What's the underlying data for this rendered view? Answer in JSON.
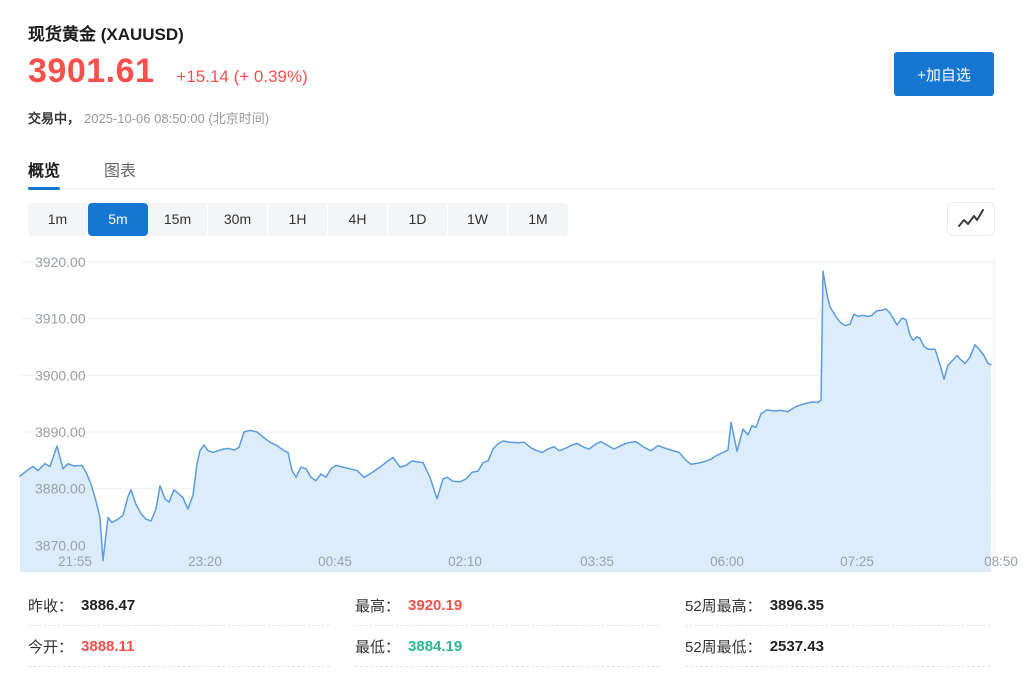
{
  "header": {
    "title": "现货黄金 (XAUUSD)",
    "price": "3901.61",
    "change": "+15.14 (+ 0.39%)",
    "status_label": "交易中，",
    "timestamp": "2025-10-06 08:50:00",
    "timezone_note": "(北京时间)",
    "add_watchlist_label": "+加自选"
  },
  "tabs": [
    {
      "label": "概览",
      "active": true
    },
    {
      "label": "图表",
      "active": false
    }
  ],
  "timeframes": {
    "options": [
      "1m",
      "5m",
      "15m",
      "30m",
      "1H",
      "4H",
      "1D",
      "1W",
      "1M"
    ],
    "active": "5m"
  },
  "stats": {
    "columns": [
      [
        {
          "name": "prev-close",
          "label": "昨收：",
          "value": "3886.47",
          "color_key": "dark"
        },
        {
          "name": "open",
          "label": "今开：",
          "value": "3888.11",
          "color_key": "up"
        }
      ],
      [
        {
          "name": "high",
          "label": "最高：",
          "value": "3920.19",
          "color_key": "up"
        },
        {
          "name": "low",
          "label": "最低：",
          "value": "3884.19",
          "color_key": "down"
        }
      ],
      [
        {
          "name": "52w-high",
          "label": "52周最高：",
          "value": "3896.35",
          "color_key": "dark"
        },
        {
          "name": "52w-low",
          "label": "52周最低：",
          "value": "2537.43",
          "color_key": "dark"
        }
      ]
    ]
  },
  "colors": {
    "up": "#f9504b",
    "down": "#2ab98f",
    "accent": "#1677d3",
    "dark": "#222222",
    "chart_line": "#5b9ce0",
    "chart_fill": "#dcecfa",
    "grid": "#efefef",
    "axis_text": "#9aa0a6"
  },
  "chart_data": {
    "type": "area",
    "symbol": "XAUUSD",
    "interval": "5m",
    "ylim": [
      3864,
      3921
    ],
    "grid": true,
    "y_ticks": [
      3920,
      3910,
      3900,
      3890,
      3880,
      3870
    ],
    "y_tick_labels": [
      "3920.00",
      "3910.00",
      "3900.00",
      "3890.00",
      "3880.00",
      "3870.00"
    ],
    "x_ticks": [
      {
        "label": "21:55",
        "px": 75
      },
      {
        "label": "23:20",
        "px": 205
      },
      {
        "label": "00:45",
        "px": 335
      },
      {
        "label": "02:10",
        "px": 465
      },
      {
        "label": "03:35",
        "px": 597
      },
      {
        "label": "06:00",
        "px": 727
      },
      {
        "label": "07:25",
        "px": 857
      },
      {
        "label": "08:50",
        "px": 1001
      }
    ],
    "series": [
      {
        "name": "XAUUSD 5m price",
        "points": [
          [
            20,
            3882.2
          ],
          [
            27,
            3883.2
          ],
          [
            33,
            3883.9
          ],
          [
            38,
            3883.2
          ],
          [
            45,
            3884.4
          ],
          [
            50,
            3883.9
          ],
          [
            57,
            3887.5
          ],
          [
            63,
            3883.5
          ],
          [
            68,
            3884.4
          ],
          [
            74,
            3884.0
          ],
          [
            82,
            3884.1
          ],
          [
            86,
            3882.9
          ],
          [
            91,
            3880.8
          ],
          [
            96,
            3877.8
          ],
          [
            100,
            3874.9
          ],
          [
            103,
            3867.3
          ],
          [
            108,
            3874.9
          ],
          [
            112,
            3874.0
          ],
          [
            118,
            3874.6
          ],
          [
            123,
            3875.3
          ],
          [
            128,
            3878.6
          ],
          [
            131,
            3879.8
          ],
          [
            136,
            3877.2
          ],
          [
            141,
            3875.6
          ],
          [
            146,
            3874.6
          ],
          [
            151,
            3874.3
          ],
          [
            156,
            3876.4
          ],
          [
            160,
            3880.5
          ],
          [
            165,
            3878.2
          ],
          [
            169,
            3877.6
          ],
          [
            174,
            3879.8
          ],
          [
            178,
            3879.2
          ],
          [
            183,
            3878.4
          ],
          [
            188,
            3876.4
          ],
          [
            193,
            3878.8
          ],
          [
            197,
            3884.4
          ],
          [
            200,
            3886.7
          ],
          [
            204,
            3887.7
          ],
          [
            208,
            3886.7
          ],
          [
            213,
            3886.4
          ],
          [
            218,
            3886.7
          ],
          [
            224,
            3887.0
          ],
          [
            229,
            3887.1
          ],
          [
            234,
            3886.8
          ],
          [
            239,
            3887.3
          ],
          [
            244,
            3890.0
          ],
          [
            250,
            3890.3
          ],
          [
            257,
            3890.0
          ],
          [
            263,
            3889.1
          ],
          [
            270,
            3888.2
          ],
          [
            277,
            3887.6
          ],
          [
            284,
            3886.7
          ],
          [
            288,
            3886.4
          ],
          [
            292,
            3883.2
          ],
          [
            296,
            3882.0
          ],
          [
            301,
            3883.8
          ],
          [
            306,
            3883.5
          ],
          [
            311,
            3882.0
          ],
          [
            316,
            3881.4
          ],
          [
            321,
            3882.6
          ],
          [
            326,
            3882.0
          ],
          [
            331,
            3883.5
          ],
          [
            336,
            3884.1
          ],
          [
            343,
            3883.8
          ],
          [
            350,
            3883.5
          ],
          [
            357,
            3883.2
          ],
          [
            364,
            3882.0
          ],
          [
            371,
            3882.7
          ],
          [
            380,
            3883.8
          ],
          [
            388,
            3884.9
          ],
          [
            393,
            3885.5
          ],
          [
            400,
            3883.8
          ],
          [
            406,
            3884.1
          ],
          [
            412,
            3884.9
          ],
          [
            418,
            3884.7
          ],
          [
            423,
            3884.6
          ],
          [
            430,
            3882.0
          ],
          [
            437,
            3878.2
          ],
          [
            443,
            3881.7
          ],
          [
            447,
            3882.0
          ],
          [
            453,
            3881.3
          ],
          [
            460,
            3881.2
          ],
          [
            466,
            3881.7
          ],
          [
            472,
            3882.9
          ],
          [
            478,
            3883.1
          ],
          [
            483,
            3884.6
          ],
          [
            488,
            3884.9
          ],
          [
            493,
            3887.0
          ],
          [
            498,
            3887.9
          ],
          [
            503,
            3888.4
          ],
          [
            510,
            3888.2
          ],
          [
            518,
            3888.1
          ],
          [
            524,
            3888.2
          ],
          [
            531,
            3887.2
          ],
          [
            537,
            3886.7
          ],
          [
            542,
            3886.4
          ],
          [
            548,
            3887.0
          ],
          [
            554,
            3887.4
          ],
          [
            559,
            3886.7
          ],
          [
            564,
            3887.0
          ],
          [
            571,
            3887.6
          ],
          [
            577,
            3888.0
          ],
          [
            584,
            3887.3
          ],
          [
            589,
            3887.0
          ],
          [
            596,
            3887.9
          ],
          [
            601,
            3888.3
          ],
          [
            608,
            3887.6
          ],
          [
            614,
            3887.0
          ],
          [
            621,
            3887.6
          ],
          [
            628,
            3888.1
          ],
          [
            636,
            3888.3
          ],
          [
            644,
            3887.3
          ],
          [
            651,
            3886.7
          ],
          [
            658,
            3887.6
          ],
          [
            664,
            3887.2
          ],
          [
            671,
            3886.8
          ],
          [
            679,
            3886.4
          ],
          [
            686,
            3885.0
          ],
          [
            691,
            3884.3
          ],
          [
            698,
            3884.5
          ],
          [
            705,
            3884.8
          ],
          [
            711,
            3885.2
          ],
          [
            716,
            3885.8
          ],
          [
            723,
            3886.4
          ],
          [
            728,
            3886.8
          ],
          [
            731,
            3891.7
          ],
          [
            737,
            3886.6
          ],
          [
            743,
            3890.5
          ],
          [
            748,
            3889.5
          ],
          [
            752,
            3891.1
          ],
          [
            756,
            3890.8
          ],
          [
            761,
            3893.2
          ],
          [
            767,
            3893.9
          ],
          [
            774,
            3893.7
          ],
          [
            781,
            3893.8
          ],
          [
            788,
            3893.6
          ],
          [
            795,
            3894.4
          ],
          [
            801,
            3894.8
          ],
          [
            807,
            3895.1
          ],
          [
            813,
            3895.3
          ],
          [
            818,
            3895.2
          ],
          [
            821,
            3895.6
          ],
          [
            823,
            3918.4
          ],
          [
            827,
            3914.2
          ],
          [
            830,
            3912.1
          ],
          [
            835,
            3910.6
          ],
          [
            840,
            3909.4
          ],
          [
            845,
            3908.8
          ],
          [
            850,
            3909.0
          ],
          [
            854,
            3910.8
          ],
          [
            858,
            3910.4
          ],
          [
            863,
            3910.6
          ],
          [
            868,
            3910.4
          ],
          [
            872,
            3910.6
          ],
          [
            877,
            3911.4
          ],
          [
            882,
            3911.5
          ],
          [
            886,
            3911.7
          ],
          [
            890,
            3911.0
          ],
          [
            894,
            3909.8
          ],
          [
            897,
            3908.9
          ],
          [
            902,
            3910.1
          ],
          [
            906,
            3909.8
          ],
          [
            910,
            3907.1
          ],
          [
            913,
            3906.2
          ],
          [
            917,
            3906.8
          ],
          [
            920,
            3906.5
          ],
          [
            924,
            3905.1
          ],
          [
            928,
            3904.6
          ],
          [
            935,
            3904.6
          ],
          [
            940,
            3901.9
          ],
          [
            944,
            3899.3
          ],
          [
            948,
            3901.8
          ],
          [
            953,
            3902.7
          ],
          [
            957,
            3903.5
          ],
          [
            960,
            3902.9
          ],
          [
            965,
            3902.1
          ],
          [
            970,
            3903.2
          ],
          [
            975,
            3905.4
          ],
          [
            980,
            3904.4
          ],
          [
            984,
            3903.5
          ],
          [
            988,
            3902.1
          ],
          [
            991,
            3901.9
          ]
        ]
      }
    ]
  }
}
